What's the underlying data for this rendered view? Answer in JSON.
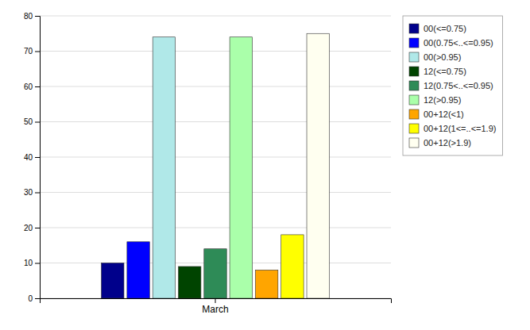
{
  "chart_data": {
    "type": "bar",
    "categories": [
      "March"
    ],
    "series": [
      {
        "name": "00(<=0.75)",
        "color": "#00008B",
        "values": [
          10
        ]
      },
      {
        "name": "00(0.75<..<=0.95)",
        "color": "#0000FF",
        "values": [
          16
        ]
      },
      {
        "name": "00(>0.95)",
        "color": "#B0E8E8",
        "values": [
          74
        ]
      },
      {
        "name": "12(<=0.75)",
        "color": "#004400",
        "values": [
          9
        ]
      },
      {
        "name": "12(0.75<..<=0.95)",
        "color": "#2E8B57",
        "values": [
          14
        ]
      },
      {
        "name": "12(>0.95)",
        "color": "#AAFFAA",
        "values": [
          74
        ]
      },
      {
        "name": "00+12(<1)",
        "color": "#FFA500",
        "values": [
          8
        ]
      },
      {
        "name": "00+12(1<=..<=1.9)",
        "color": "#FFFF00",
        "values": [
          18
        ]
      },
      {
        "name": "00+12(>1.9)",
        "color": "#FFFFF0",
        "values": [
          75
        ]
      }
    ],
    "ylim": [
      0,
      80
    ],
    "yticks": [
      0,
      10,
      20,
      30,
      40,
      50,
      60,
      70,
      80
    ],
    "grid": true,
    "legend": "right"
  }
}
